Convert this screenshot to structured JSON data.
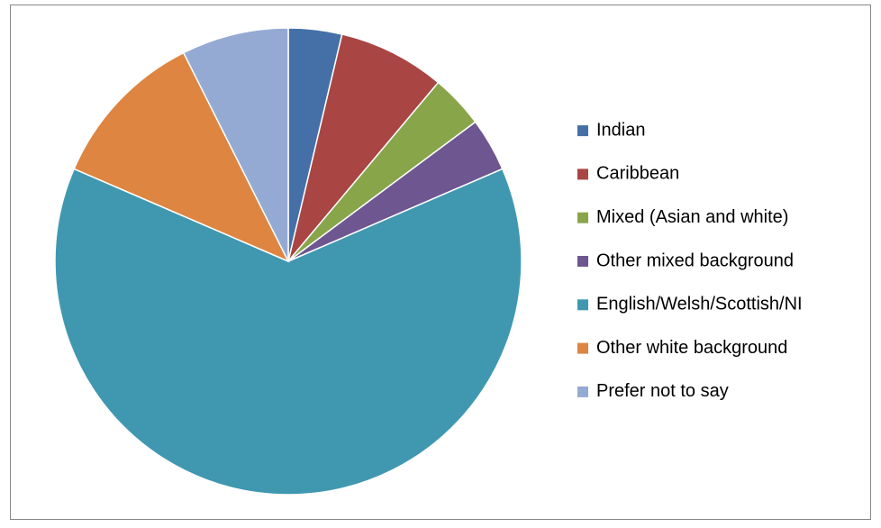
{
  "chart_data": {
    "type": "pie",
    "categories": [
      "Indian",
      "Caribbean",
      "Mixed (Asian and white)",
      "Other mixed background",
      "English/Welsh/Scottish/NI",
      "Other white background",
      "Prefer not to say"
    ],
    "values": [
      1,
      2,
      1,
      1,
      17,
      3,
      2
    ],
    "colors": [
      "#4470a7",
      "#a94543",
      "#88a54a",
      "#6e5691",
      "#4098b0",
      "#dd8541",
      "#95aad3"
    ],
    "legend": "right"
  }
}
